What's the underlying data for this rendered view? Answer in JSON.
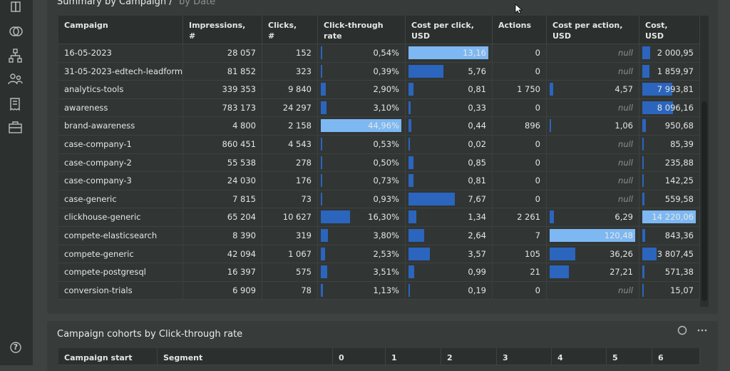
{
  "sidebar": {
    "help": "?"
  },
  "summary": {
    "title": "Summary by Campaign /",
    "tab": "by Date",
    "table": {
      "columns": [
        "Campaign",
        "Impressions,\n#",
        "Clicks,\n#",
        "Click-through\nrate",
        "Cost per click,\nUSD",
        "Actions",
        "Cost per action,\nUSD",
        "Cost,\nUSD"
      ],
      "rows": [
        [
          "16-05-2023",
          "28 057",
          "152",
          "0,54%",
          "13,16",
          "0",
          "null",
          "2 000,95"
        ],
        [
          "31-05-2023-edtech-leadform",
          "81 852",
          "323",
          "0,39%",
          "5,76",
          "0",
          "null",
          "1 859,97"
        ],
        [
          "analytics-tools",
          "339 353",
          "9 840",
          "2,90%",
          "0,81",
          "1 750",
          "4,57",
          "7 993,81"
        ],
        [
          "awareness",
          "783 173",
          "24 297",
          "3,10%",
          "0,33",
          "0",
          "null",
          "8 096,16"
        ],
        [
          "brand-awareness",
          "4 800",
          "2 158",
          "44,96%",
          "0,44",
          "896",
          "1,06",
          "950,68"
        ],
        [
          "case-company-1",
          "860 451",
          "4 543",
          "0,53%",
          "0,02",
          "0",
          "null",
          "85,39"
        ],
        [
          "case-company-2",
          "55 538",
          "278",
          "0,50%",
          "0,85",
          "0",
          "null",
          "235,88"
        ],
        [
          "case-company-3",
          "24 030",
          "176",
          "0,73%",
          "0,81",
          "0",
          "null",
          "142,25"
        ],
        [
          "case-generic",
          "7 815",
          "73",
          "0,93%",
          "7,67",
          "0",
          "null",
          "559,58"
        ],
        [
          "clickhouse-generic",
          "65 204",
          "10 627",
          "16,30%",
          "1,34",
          "2 261",
          "6,29",
          "14 220,06"
        ],
        [
          "compete-elasticsearch",
          "8 390",
          "319",
          "3,80%",
          "2,64",
          "7",
          "120,48",
          "843,36"
        ],
        [
          "compete-generic",
          "42 094",
          "1 067",
          "2,53%",
          "3,57",
          "105",
          "36,26",
          "3 807,45"
        ],
        [
          "compete-postgresql",
          "16 397",
          "575",
          "3,51%",
          "0,99",
          "21",
          "27,21",
          "571,38"
        ],
        [
          "conversion-trials",
          "6 909",
          "78",
          "1,13%",
          "0,19",
          "0",
          "null",
          "15,07"
        ]
      ]
    }
  },
  "cohort": {
    "title": "Campaign cohorts by Click-through rate",
    "columns": [
      "Campaign start",
      "Segment",
      "0",
      "1",
      "2",
      "3",
      "4",
      "5",
      "6"
    ]
  }
}
